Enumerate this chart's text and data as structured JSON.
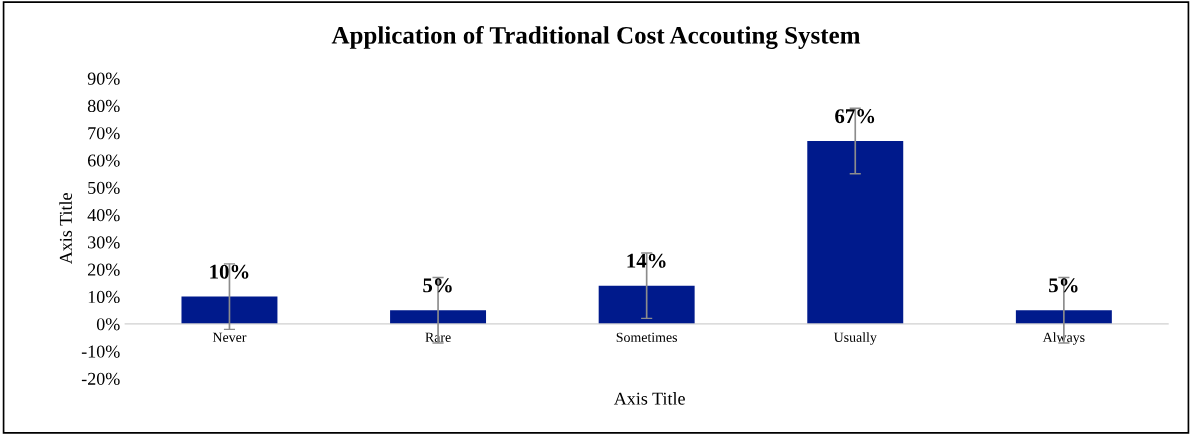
{
  "chart_data": {
    "type": "bar",
    "title": "Application of Traditional Cost Accouting System",
    "xlabel": "Axis Title",
    "ylabel": "Axis Title",
    "categories": [
      "Never",
      "Rare",
      "Sometimes",
      "Usually",
      "Always"
    ],
    "values": [
      10,
      5,
      14,
      67,
      5
    ],
    "value_labels": [
      "10%",
      "5%",
      "14%",
      "67%",
      "5%"
    ],
    "errors": [
      12,
      12,
      12,
      12,
      12
    ],
    "color": "#001a8c",
    "ylim": [
      -20,
      90
    ],
    "yticks": [
      {
        "value": -20,
        "label": "-20%"
      },
      {
        "value": -10,
        "label": "-10%"
      },
      {
        "value": 0,
        "label": "0%"
      },
      {
        "value": 10,
        "label": "10%"
      },
      {
        "value": 20,
        "label": "20%"
      },
      {
        "value": 30,
        "label": "30%"
      },
      {
        "value": 40,
        "label": "40%"
      },
      {
        "value": 50,
        "label": "50%"
      },
      {
        "value": 60,
        "label": "60%"
      },
      {
        "value": 70,
        "label": "70%"
      },
      {
        "value": 80,
        "label": "80%"
      },
      {
        "value": 90,
        "label": "90%"
      }
    ],
    "grid": false,
    "legend": false
  }
}
